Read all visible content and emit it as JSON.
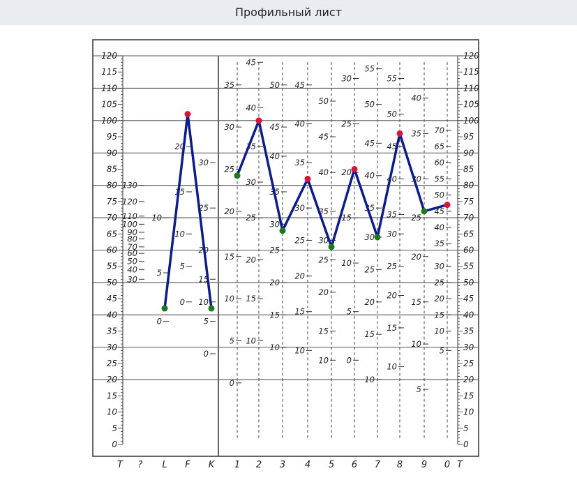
{
  "title": "Профильный лист",
  "chart_data": {
    "type": "line",
    "ylim": [
      0,
      120
    ],
    "y_ticks": [
      "0",
      "5",
      "10",
      "15",
      "20",
      "25",
      "30",
      "35",
      "40",
      "45",
      "50",
      "55",
      "60",
      "65",
      "70",
      "75",
      "80",
      "85",
      "90",
      "95",
      "100",
      "105",
      "110",
      "115",
      "120"
    ],
    "x_labels": [
      "T",
      "?",
      "L",
      "F",
      "K",
      "1",
      "2",
      "3",
      "4",
      "5",
      "6",
      "7",
      "8",
      "9",
      "0",
      "T"
    ],
    "series": [
      {
        "values": [
          {
            "x": "L",
            "y": 42
          },
          {
            "x": "F",
            "y": 102
          },
          {
            "x": "K",
            "y": 42
          }
        ]
      },
      {
        "values": [
          {
            "x": "1",
            "y": 83
          },
          {
            "x": "2",
            "y": 100
          },
          {
            "x": "3",
            "y": 66
          },
          {
            "x": "4",
            "y": 82
          },
          {
            "x": "5",
            "y": 61
          },
          {
            "x": "6",
            "y": 85
          },
          {
            "x": "7",
            "y": 64
          },
          {
            "x": "8",
            "y": 96
          },
          {
            "x": "9",
            "y": 72
          },
          {
            "x": "0",
            "y": 74
          }
        ]
      }
    ],
    "point_colors": {
      "high": "#dc143c",
      "low": "#1b7a1b"
    },
    "line_color": "#0d1b8c",
    "raw_scales": {
      "?": [
        {
          "v": "130",
          "y": 80
        },
        {
          "v": "120",
          "y": 75
        },
        {
          "v": "110",
          "y": 70.5
        },
        {
          "v": "100",
          "y": 68
        },
        {
          "v": "90",
          "y": 65.5
        },
        {
          "v": "80",
          "y": 63.5
        },
        {
          "v": "70",
          "y": 61
        },
        {
          "v": "60",
          "y": 59
        },
        {
          "v": "50",
          "y": 56.5
        },
        {
          "v": "40",
          "y": 54
        },
        {
          "v": "30",
          "y": 51
        }
      ],
      "L": [
        {
          "v": "10",
          "y": 70
        },
        {
          "v": "5",
          "y": 53
        },
        {
          "v": "0",
          "y": 38
        }
      ],
      "F": [
        {
          "v": "20",
          "y": 92
        },
        {
          "v": "15",
          "y": 78
        },
        {
          "v": "10",
          "y": 65
        },
        {
          "v": "5",
          "y": 55
        },
        {
          "v": "0",
          "y": 44
        }
      ],
      "K": [
        {
          "v": "30",
          "y": 87
        },
        {
          "v": "25",
          "y": 73
        },
        {
          "v": "20",
          "y": 60
        },
        {
          "v": "15",
          "y": 51
        },
        {
          "v": "10",
          "y": 44
        },
        {
          "v": "5",
          "y": 38
        },
        {
          "v": "0",
          "y": 28
        }
      ],
      "1": [
        {
          "v": "35",
          "y": 111
        },
        {
          "v": "30",
          "y": 98
        },
        {
          "v": "25",
          "y": 85
        },
        {
          "v": "20",
          "y": 72
        },
        {
          "v": "15",
          "y": 58
        },
        {
          "v": "10",
          "y": 45
        },
        {
          "v": "5",
          "y": 32
        },
        {
          "v": "0",
          "y": 19
        }
      ],
      "2": [
        {
          "v": "45",
          "y": 118
        },
        {
          "v": "40",
          "y": 104
        },
        {
          "v": "35",
          "y": 92
        },
        {
          "v": "30",
          "y": 81
        },
        {
          "v": "25",
          "y": 70
        },
        {
          "v": "20",
          "y": 57
        },
        {
          "v": "15",
          "y": 45
        },
        {
          "v": "10",
          "y": 32
        }
      ],
      "3": [
        {
          "v": "50",
          "y": 111
        },
        {
          "v": "45",
          "y": 98
        },
        {
          "v": "40",
          "y": 89
        },
        {
          "v": "35",
          "y": 78
        },
        {
          "v": "30",
          "y": 68
        },
        {
          "v": "25",
          "y": 60
        },
        {
          "v": "20",
          "y": 50
        },
        {
          "v": "15",
          "y": 40
        },
        {
          "v": "10",
          "y": 30
        }
      ],
      "4": [
        {
          "v": "45",
          "y": 111
        },
        {
          "v": "40",
          "y": 99
        },
        {
          "v": "35",
          "y": 87
        },
        {
          "v": "30",
          "y": 73
        },
        {
          "v": "25",
          "y": 63
        },
        {
          "v": "20",
          "y": 52
        },
        {
          "v": "15",
          "y": 41
        },
        {
          "v": "10",
          "y": 29
        }
      ],
      "5": [
        {
          "v": "50",
          "y": 106
        },
        {
          "v": "45",
          "y": 95
        },
        {
          "v": "40",
          "y": 84
        },
        {
          "v": "35",
          "y": 72
        },
        {
          "v": "30",
          "y": 63
        },
        {
          "v": "25",
          "y": 57
        },
        {
          "v": "20",
          "y": 47
        },
        {
          "v": "15",
          "y": 35
        },
        {
          "v": "10",
          "y": 26
        }
      ],
      "6": [
        {
          "v": "30",
          "y": 113
        },
        {
          "v": "25",
          "y": 99
        },
        {
          "v": "20",
          "y": 84
        },
        {
          "v": "15",
          "y": 70
        },
        {
          "v": "10",
          "y": 56
        },
        {
          "v": "5",
          "y": 41
        },
        {
          "v": "0",
          "y": 26
        }
      ],
      "7": [
        {
          "v": "55",
          "y": 116
        },
        {
          "v": "50",
          "y": 105
        },
        {
          "v": "45",
          "y": 93
        },
        {
          "v": "40",
          "y": 83
        },
        {
          "v": "35",
          "y": 73
        },
        {
          "v": "30",
          "y": 64
        },
        {
          "v": "25",
          "y": 54
        },
        {
          "v": "20",
          "y": 44
        },
        {
          "v": "15",
          "y": 34
        },
        {
          "v": "10",
          "y": 20
        }
      ],
      "8": [
        {
          "v": "55",
          "y": 113
        },
        {
          "v": "50",
          "y": 102
        },
        {
          "v": "45",
          "y": 92
        },
        {
          "v": "40",
          "y": 82
        },
        {
          "v": "35",
          "y": 71
        },
        {
          "v": "30",
          "y": 65
        },
        {
          "v": "25",
          "y": 55
        },
        {
          "v": "20",
          "y": 46
        },
        {
          "v": "15",
          "y": 36
        },
        {
          "v": "10",
          "y": 24
        }
      ],
      "9": [
        {
          "v": "40",
          "y": 107
        },
        {
          "v": "35",
          "y": 96
        },
        {
          "v": "30",
          "y": 82
        },
        {
          "v": "25",
          "y": 70
        },
        {
          "v": "20",
          "y": 58
        },
        {
          "v": "15",
          "y": 44
        },
        {
          "v": "10",
          "y": 31
        },
        {
          "v": "5",
          "y": 17
        }
      ],
      "0": [
        {
          "v": "70",
          "y": 97
        },
        {
          "v": "65",
          "y": 92
        },
        {
          "v": "60",
          "y": 87
        },
        {
          "v": "55",
          "y": 82
        },
        {
          "v": "50",
          "y": 77
        },
        {
          "v": "45",
          "y": 72
        },
        {
          "v": "40",
          "y": 67
        },
        {
          "v": "35",
          "y": 62
        },
        {
          "v": "30",
          "y": 55
        },
        {
          "v": "25",
          "y": 50
        },
        {
          "v": "20",
          "y": 45
        },
        {
          "v": "15",
          "y": 40
        },
        {
          "v": "10",
          "y": 35
        },
        {
          "v": "5",
          "y": 29
        }
      ]
    }
  }
}
